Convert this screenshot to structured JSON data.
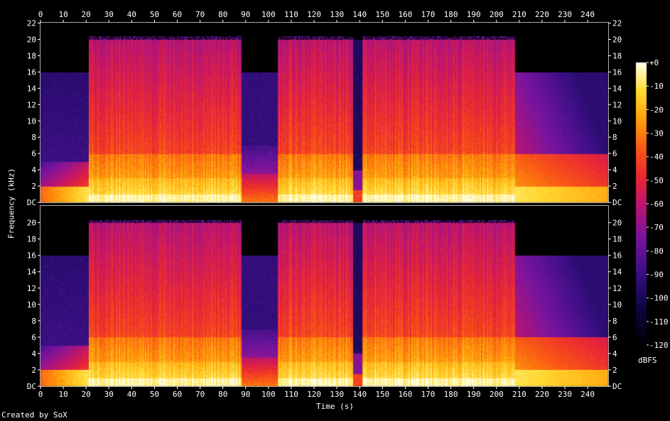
{
  "chart_data": {
    "type": "heatmap",
    "description_channels": 2,
    "xlabel": "Time (s)",
    "ylabel": "Frequency (kHz)",
    "credit": "Created by SoX",
    "colorbar_label": "dBFS",
    "xlim": [
      0,
      249
    ],
    "ylim": [
      0,
      22.05
    ],
    "x_ticks": [
      "0",
      "10",
      "20",
      "30",
      "40",
      "50",
      "60",
      "70",
      "80",
      "90",
      "100",
      "110",
      "120",
      "130",
      "140",
      "150",
      "160",
      "170",
      "180",
      "190",
      "200",
      "210",
      "220",
      "230",
      "240"
    ],
    "y_ticks_top": [
      "DC",
      "2",
      "4",
      "6",
      "8",
      "10",
      "12",
      "14",
      "16",
      "18",
      "20",
      "22"
    ],
    "y_ticks_bottom": [
      "DC",
      "2",
      "4",
      "6",
      "8",
      "10",
      "12",
      "14",
      "16",
      "18",
      "20"
    ],
    "colorbar_ticks": [
      "+0",
      "-10",
      "-20",
      "-30",
      "-40",
      "-50",
      "-60",
      "-70",
      "-80",
      "-90",
      "-100",
      "-110",
      "-120"
    ],
    "colorbar_range_dbfs": [
      -120,
      0
    ],
    "segments": [
      {
        "start": 0,
        "end": 21,
        "kind": "intro",
        "cutoff_khz": 16
      },
      {
        "start": 21,
        "end": 88,
        "kind": "full",
        "cutoff_khz": 20
      },
      {
        "start": 88,
        "end": 104,
        "kind": "quiet",
        "cutoff_khz": 16
      },
      {
        "start": 104,
        "end": 137,
        "kind": "full",
        "cutoff_khz": 20
      },
      {
        "start": 137,
        "end": 141,
        "kind": "gap",
        "cutoff_khz": 20
      },
      {
        "start": 141,
        "end": 208,
        "kind": "full",
        "cutoff_khz": 20
      },
      {
        "start": 208,
        "end": 249,
        "kind": "fade",
        "cutoff_khz": 16
      }
    ],
    "colors": {
      "background": "#000000",
      "text": "#ffffff",
      "frame": "#aaaaaa"
    }
  }
}
